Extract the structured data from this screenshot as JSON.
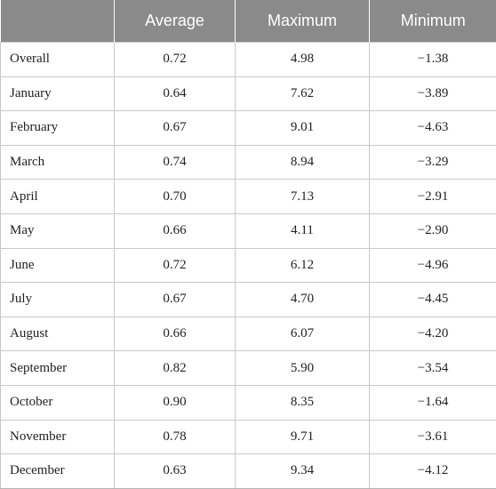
{
  "table": {
    "headers": [
      "",
      "Average",
      "Maximum",
      "Minimum"
    ],
    "rows": [
      {
        "label": "Overall",
        "average": "0.72",
        "maximum": "4.98",
        "minimum": "−1.38"
      },
      {
        "label": "January",
        "average": "0.64",
        "maximum": "7.62",
        "minimum": "−3.89"
      },
      {
        "label": "February",
        "average": "0.67",
        "maximum": "9.01",
        "minimum": "−4.63"
      },
      {
        "label": "March",
        "average": "0.74",
        "maximum": "8.94",
        "minimum": "−3.29"
      },
      {
        "label": "April",
        "average": "0.70",
        "maximum": "7.13",
        "minimum": "−2.91"
      },
      {
        "label": "May",
        "average": "0.66",
        "maximum": "4.11",
        "minimum": "−2.90"
      },
      {
        "label": "June",
        "average": "0.72",
        "maximum": "6.12",
        "minimum": "−4.96"
      },
      {
        "label": "July",
        "average": "0.67",
        "maximum": "4.70",
        "minimum": "−4.45"
      },
      {
        "label": "August",
        "average": "0.66",
        "maximum": "6.07",
        "minimum": "−4.20"
      },
      {
        "label": "September",
        "average": "0.82",
        "maximum": "5.90",
        "minimum": "−3.54"
      },
      {
        "label": "October",
        "average": "0.90",
        "maximum": "8.35",
        "minimum": "−1.64"
      },
      {
        "label": "November",
        "average": "0.78",
        "maximum": "9.71",
        "minimum": "−3.61"
      },
      {
        "label": "December",
        "average": "0.63",
        "maximum": "9.34",
        "minimum": "−4.12"
      }
    ]
  }
}
